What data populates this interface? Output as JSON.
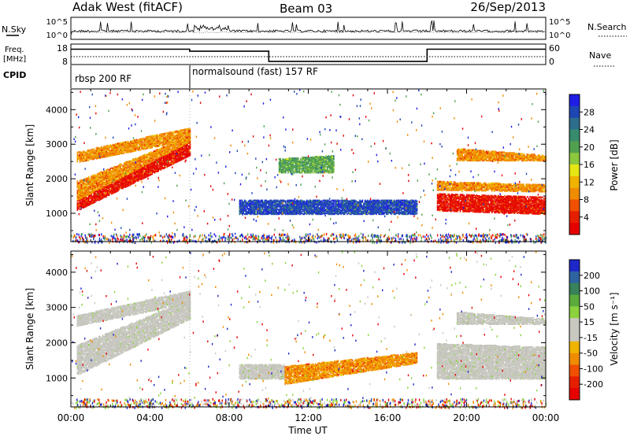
{
  "header": {
    "title": "Adak West (fitACF)",
    "beam": "Beam 03",
    "date": "26/Sep/2013"
  },
  "noise_panel": {
    "left_label": "N.Sky",
    "right_label": "N.Search",
    "left_ticks": [
      "10^5",
      "10^0"
    ],
    "right_ticks": [
      "10^5",
      "10^0"
    ]
  },
  "freq_panel": {
    "left_label_line1": "Freq.",
    "left_label_line2": "[MHz]",
    "right_label": "Nave",
    "left_ticks": [
      "18",
      "8"
    ],
    "right_ticks": [
      "60",
      "0"
    ],
    "freq_steps": [
      {
        "t0": 0,
        "t1": 6,
        "level": 0.25
      },
      {
        "t0": 6,
        "t1": 10,
        "level": 0.35
      },
      {
        "t0": 10,
        "t1": 18,
        "level": 0.85
      },
      {
        "t0": 18,
        "t1": 24,
        "level": 0.25
      }
    ]
  },
  "cpid": {
    "label": "CPID",
    "segments": [
      {
        "name": "rbsp 200 RF",
        "start_hour": 0
      },
      {
        "name": "normalsound (fast) 157 RF",
        "start_hour": 6
      }
    ]
  },
  "chart_data": [
    {
      "type": "heatmap",
      "name": "power",
      "ylabel": "Slant Range [km]",
      "xlabel": "Time UT",
      "xlim": [
        0,
        24
      ],
      "ylim": [
        180,
        4600
      ],
      "yticks": [
        1000,
        2000,
        3000,
        4000
      ],
      "xticks": [
        "00:00",
        "04:00",
        "08:00",
        "12:00",
        "16:00",
        "20:00",
        "00:00"
      ],
      "colorbar": {
        "label": "Power [dB]",
        "ticks": [
          "4",
          "8",
          "12",
          "16",
          "20",
          "24",
          "28"
        ],
        "colors": [
          "#1e1ee6",
          "#1e46b4",
          "#2d6e8c",
          "#378c6e",
          "#50a050",
          "#8cc83c",
          "#e6e614",
          "#f0b400",
          "#f08c00",
          "#f05000",
          "#e61e00",
          "#e60000"
        ]
      },
      "bands": [
        {
          "t0": 0.3,
          "t1": 6,
          "r0": 1100,
          "r1": 1400,
          "t2": 9.2,
          "r2": 2700,
          "r3": 3100,
          "dominant": "red"
        },
        {
          "t0": 0.3,
          "t1": 6,
          "r0": 1400,
          "r1": 1950,
          "t2": 9.2,
          "r2": 3100,
          "r3": 3250,
          "dominant": "orange"
        },
        {
          "t0": 0.3,
          "t1": 6,
          "r0": 2500,
          "r1": 2800,
          "t2": 8.3,
          "r2": 3150,
          "r3": 3500,
          "dominant": "orange"
        },
        {
          "t0": 8.5,
          "t1": 17.5,
          "r0": 1000,
          "r1": 1400,
          "t2": 17.5,
          "r2": 1000,
          "r3": 1400,
          "dominant": "blue"
        },
        {
          "t0": 10.5,
          "t1": 13.3,
          "r0": 2200,
          "r1": 2600,
          "t2": 13.3,
          "r2": 2200,
          "r3": 2700,
          "dominant": "green"
        },
        {
          "t0": 18.5,
          "t1": 24,
          "r0": 1100,
          "r1": 1600,
          "t2": 24,
          "r2": 1000,
          "r3": 1500,
          "dominant": "red"
        },
        {
          "t0": 18.5,
          "t1": 24,
          "r0": 1700,
          "r1": 1950,
          "t2": 24,
          "r2": 1650,
          "r3": 1850,
          "dominant": "orange"
        },
        {
          "t0": 19.5,
          "t1": 24,
          "r0": 2550,
          "r1": 2900,
          "t2": 24,
          "r2": 2550,
          "r3": 2700,
          "dominant": "orange"
        }
      ]
    },
    {
      "type": "heatmap",
      "name": "velocity",
      "ylabel": "Slant Range [km]",
      "xlabel": "Time UT",
      "xlim": [
        0,
        24
      ],
      "ylim": [
        180,
        4600
      ],
      "yticks": [
        1000,
        2000,
        3000,
        4000
      ],
      "xticks": [
        "00:00",
        "04:00",
        "08:00",
        "12:00",
        "16:00",
        "20:00",
        "00:00"
      ],
      "colorbar": {
        "label": "Velocity [m s⁻¹]",
        "ticks": [
          "200",
          "100",
          "50",
          "15",
          "-15",
          "-50",
          "-100",
          "-200"
        ],
        "colors": [
          "#1e28c8",
          "#2d64a0",
          "#37825a",
          "#5aaa3c",
          "#8cd23c",
          "#c8c8c0",
          "#c8c8c0",
          "#f0b400",
          "#f08c00",
          "#f05000",
          "#e61e00",
          "#e60000"
        ]
      },
      "bands": [
        {
          "t0": 0.3,
          "t1": 6,
          "r0": 1100,
          "r1": 1950,
          "t2": 9.2,
          "r2": 2700,
          "r3": 3250,
          "dominant": "gray"
        },
        {
          "t0": 0.3,
          "t1": 6,
          "r0": 2500,
          "r1": 2800,
          "t2": 8.3,
          "r2": 3150,
          "r3": 3500,
          "dominant": "gray"
        },
        {
          "t0": 8.5,
          "t1": 10.8,
          "r0": 1000,
          "r1": 1400,
          "t2": 10.8,
          "r2": 1000,
          "r3": 1400,
          "dominant": "gray"
        },
        {
          "t0": 10.8,
          "t1": 17.5,
          "r0": 850,
          "r1": 1350,
          "t2": 17.5,
          "r2": 1450,
          "r3": 1750,
          "dominant": "orange"
        },
        {
          "t0": 18.5,
          "t1": 24,
          "r0": 1000,
          "r1": 2000,
          "t2": 24,
          "r2": 1000,
          "r3": 1900,
          "dominant": "gray"
        },
        {
          "t0": 19.5,
          "t1": 24,
          "r0": 2550,
          "r1": 2900,
          "t2": 24,
          "r2": 2550,
          "r3": 2700,
          "dominant": "gray"
        }
      ]
    }
  ]
}
